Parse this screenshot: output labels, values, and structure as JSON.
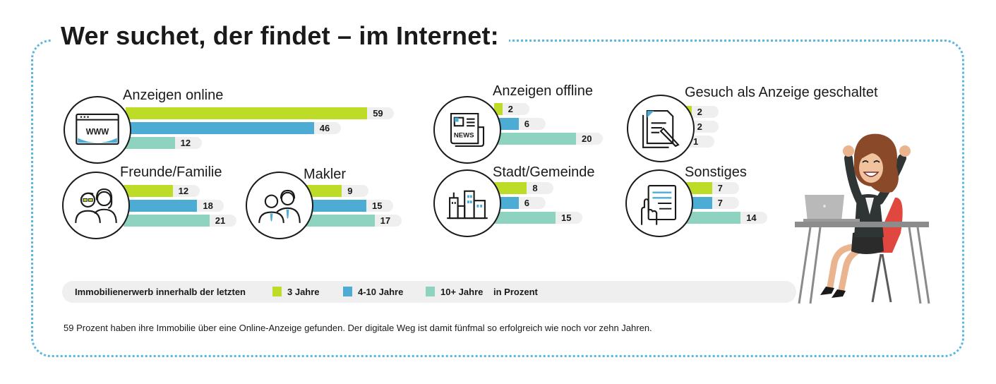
{
  "header": {
    "title": "Wer suchet, der findet – im Internet:"
  },
  "colors": {
    "3_jahre": "#bcdc28",
    "4_10_jahre": "#4cacd4",
    "10plus_jahre": "#8ed3c0"
  },
  "chart_data": {
    "type": "bar",
    "orientation": "horizontal",
    "unit": "in Prozent",
    "series_names": [
      "3 Jahre",
      "4-10 Jahre",
      "10+ Jahre"
    ],
    "groups": [
      {
        "label": "Anzeigen online",
        "icon": "www-browser-icon",
        "values": [
          59,
          46,
          12
        ]
      },
      {
        "label": "Anzeigen offline",
        "icon": "newspaper-icon",
        "values": [
          2,
          6,
          20
        ]
      },
      {
        "label": "Gesuch als Anzeige geschaltet",
        "icon": "document-pen-icon",
        "values": [
          2,
          2,
          1
        ]
      },
      {
        "label": "Freunde/Familie",
        "icon": "friends-family-icon",
        "values": [
          12,
          18,
          21
        ]
      },
      {
        "label": "Makler",
        "icon": "realtor-icon",
        "values": [
          9,
          15,
          17
        ]
      },
      {
        "label": "Stadt/Gemeinde",
        "icon": "city-buildings-icon",
        "values": [
          8,
          6,
          15
        ]
      },
      {
        "label": "Sonstiges",
        "icon": "hand-form-icon",
        "values": [
          7,
          7,
          14
        ]
      }
    ]
  },
  "legend": {
    "title": "Immobilienerwerb innerhalb der letzten",
    "items": [
      "3 Jahre",
      "4-10 Jahre",
      "10+ Jahre"
    ],
    "unit": "in Prozent"
  },
  "footnote": "59 Prozent haben ihre Immobilie über eine Online-Anzeige gefunden. Der digitale Weg ist damit fünfmal so erfolgreich wie noch vor zehn Jahren."
}
